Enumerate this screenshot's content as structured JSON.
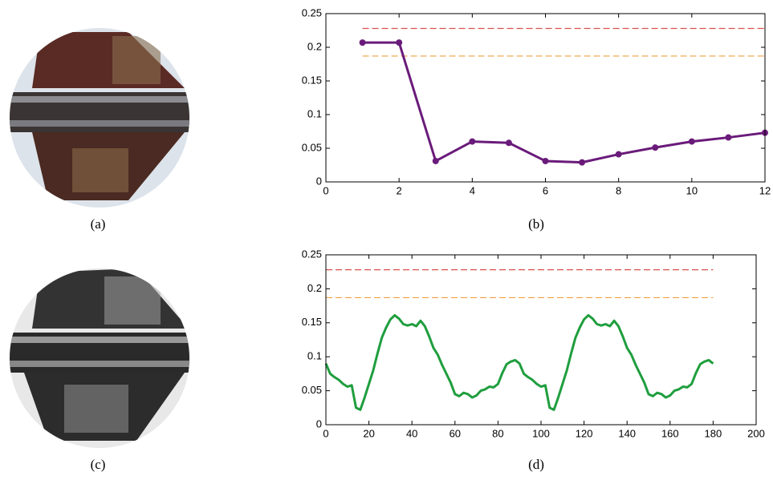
{
  "captions": [
    "(a)",
    "(b)",
    "(c)",
    "(d)"
  ],
  "chart_data": [
    {
      "type": "line",
      "xlim": [
        0,
        12
      ],
      "xticks": [
        0,
        2,
        4,
        6,
        8,
        10,
        12
      ],
      "ylim": [
        0,
        0.25
      ],
      "yticks": [
        0,
        0.05,
        0.1,
        0.15,
        0.2,
        0.25
      ],
      "x": [
        1,
        2,
        3,
        4,
        5,
        6,
        7,
        8,
        9,
        10,
        11,
        12
      ],
      "series": [
        {
          "color": "#6a1b7a",
          "markers": true,
          "values": [
            0.207,
            0.207,
            0.031,
            0.06,
            0.058,
            0.031,
            0.029,
            0.041,
            0.051,
            0.06,
            0.066,
            0.073
          ]
        }
      ],
      "lines": [
        {
          "color": "#d9534f",
          "dashed": true,
          "x": [
            1,
            12
          ],
          "values": [
            0.228,
            0.228
          ]
        },
        {
          "color": "#f0a040",
          "dashed": true,
          "x": [
            1,
            12
          ],
          "values": [
            0.187,
            0.187
          ]
        }
      ]
    },
    {
      "type": "line",
      "xlim": [
        0,
        200
      ],
      "xticks": [
        0,
        20,
        40,
        60,
        80,
        100,
        120,
        140,
        160,
        180,
        200
      ],
      "ylim": [
        0,
        0.25
      ],
      "yticks": [
        0,
        0.05,
        0.1,
        0.15,
        0.2,
        0.25
      ],
      "x": [
        0,
        2,
        4,
        6,
        8,
        10,
        12,
        14,
        16,
        18,
        20,
        22,
        24,
        26,
        28,
        30,
        32,
        34,
        36,
        38,
        40,
        42,
        44,
        46,
        48,
        50,
        52,
        54,
        56,
        58,
        60,
        62,
        64,
        66,
        68,
        70,
        72,
        74,
        76,
        78,
        80,
        82,
        84,
        86,
        88,
        90,
        92,
        94,
        96,
        98,
        100,
        102,
        104,
        106,
        108,
        110,
        112,
        114,
        116,
        118,
        120,
        122,
        124,
        126,
        128,
        130,
        132,
        134,
        136,
        138,
        140,
        142,
        144,
        146,
        148,
        150,
        152,
        154,
        156,
        158,
        160,
        162,
        164,
        166,
        168,
        170,
        172,
        174,
        176,
        178,
        180
      ],
      "series": [
        {
          "color": "#1f9e3e",
          "markers": false,
          "values": [
            0.09,
            0.075,
            0.07,
            0.066,
            0.06,
            0.056,
            0.058,
            0.025,
            0.022,
            0.04,
            0.06,
            0.08,
            0.105,
            0.128,
            0.143,
            0.155,
            0.161,
            0.156,
            0.148,
            0.146,
            0.148,
            0.145,
            0.153,
            0.145,
            0.13,
            0.113,
            0.103,
            0.088,
            0.075,
            0.062,
            0.045,
            0.042,
            0.047,
            0.045,
            0.04,
            0.043,
            0.05,
            0.052,
            0.056,
            0.055,
            0.06,
            0.076,
            0.089,
            0.093,
            0.095,
            0.09,
            0.075,
            0.07,
            0.066,
            0.06,
            0.056,
            0.058,
            0.025,
            0.022,
            0.04,
            0.06,
            0.08,
            0.105,
            0.128,
            0.143,
            0.155,
            0.161,
            0.156,
            0.148,
            0.146,
            0.148,
            0.145,
            0.153,
            0.145,
            0.13,
            0.113,
            0.103,
            0.088,
            0.075,
            0.062,
            0.045,
            0.042,
            0.047,
            0.045,
            0.04,
            0.043,
            0.05,
            0.052,
            0.056,
            0.055,
            0.06,
            0.076,
            0.089,
            0.093,
            0.095,
            0.09
          ]
        }
      ],
      "lines": [
        {
          "color": "#d9534f",
          "dashed": true,
          "x": [
            0,
            180
          ],
          "values": [
            0.228,
            0.228
          ]
        },
        {
          "color": "#f0a040",
          "dashed": true,
          "x": [
            0,
            180
          ],
          "values": [
            0.187,
            0.187
          ]
        }
      ]
    }
  ]
}
